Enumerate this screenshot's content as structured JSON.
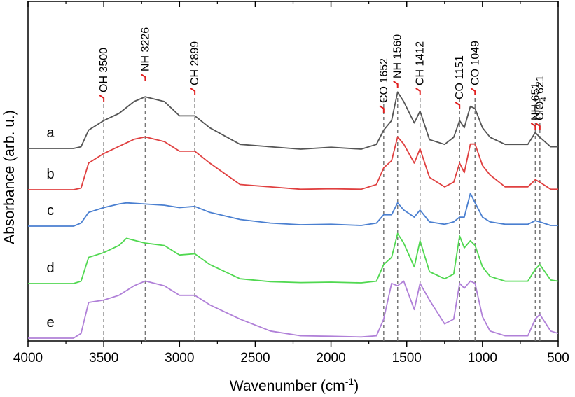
{
  "chart_data": {
    "type": "line",
    "xlabel": "Wavenumber (cm",
    "xlabel_sup": "-1",
    "xlabel_tail": ")",
    "ylabel": "Absorbance (arb. u.)",
    "xlim": [
      4000,
      500
    ],
    "ylim": [
      0,
      1
    ],
    "x_ticks": [
      {
        "value": 4000,
        "label": "4000"
      },
      {
        "value": 3500,
        "label": "3500"
      },
      {
        "value": 3000,
        "label": "3000"
      },
      {
        "value": 2500,
        "label": "2500"
      },
      {
        "value": 2000,
        "label": "2000"
      },
      {
        "value": 1500,
        "label": "1500"
      },
      {
        "value": 1000,
        "label": "1000"
      },
      {
        "value": 500,
        "label": "500"
      }
    ],
    "series": [
      {
        "name": "a",
        "color": "#555555",
        "points": [
          [
            4000,
            0.163
          ],
          [
            3700,
            0.163
          ],
          [
            3650,
            0.17
          ],
          [
            3600,
            0.24
          ],
          [
            3500,
            0.28
          ],
          [
            3400,
            0.31
          ],
          [
            3300,
            0.36
          ],
          [
            3226,
            0.38
          ],
          [
            3100,
            0.36
          ],
          [
            3000,
            0.3
          ],
          [
            2899,
            0.3
          ],
          [
            2800,
            0.25
          ],
          [
            2600,
            0.18
          ],
          [
            2400,
            0.17
          ],
          [
            2200,
            0.16
          ],
          [
            2000,
            0.168
          ],
          [
            1800,
            0.16
          ],
          [
            1700,
            0.18
          ],
          [
            1652,
            0.24
          ],
          [
            1600,
            0.28
          ],
          [
            1560,
            0.4
          ],
          [
            1520,
            0.36
          ],
          [
            1450,
            0.27
          ],
          [
            1412,
            0.32
          ],
          [
            1350,
            0.2
          ],
          [
            1250,
            0.18
          ],
          [
            1190,
            0.21
          ],
          [
            1151,
            0.28
          ],
          [
            1120,
            0.25
          ],
          [
            1080,
            0.34
          ],
          [
            1049,
            0.33
          ],
          [
            1000,
            0.25
          ],
          [
            950,
            0.21
          ],
          [
            850,
            0.18
          ],
          [
            700,
            0.18
          ],
          [
            651,
            0.23
          ],
          [
            621,
            0.21
          ],
          [
            550,
            0.17
          ],
          [
            500,
            0.17
          ]
        ]
      },
      {
        "name": "b",
        "color": "#e04040",
        "points": [
          [
            4000,
            0.108
          ],
          [
            3700,
            0.108
          ],
          [
            3650,
            0.115
          ],
          [
            3600,
            0.22
          ],
          [
            3500,
            0.26
          ],
          [
            3400,
            0.29
          ],
          [
            3300,
            0.32
          ],
          [
            3226,
            0.33
          ],
          [
            3100,
            0.31
          ],
          [
            3000,
            0.27
          ],
          [
            2899,
            0.27
          ],
          [
            2800,
            0.22
          ],
          [
            2600,
            0.13
          ],
          [
            2400,
            0.12
          ],
          [
            2200,
            0.11
          ],
          [
            2000,
            0.112
          ],
          [
            1800,
            0.11
          ],
          [
            1700,
            0.13
          ],
          [
            1652,
            0.2
          ],
          [
            1600,
            0.23
          ],
          [
            1560,
            0.33
          ],
          [
            1520,
            0.3
          ],
          [
            1450,
            0.22
          ],
          [
            1412,
            0.28
          ],
          [
            1350,
            0.16
          ],
          [
            1250,
            0.12
          ],
          [
            1190,
            0.14
          ],
          [
            1151,
            0.22
          ],
          [
            1120,
            0.18
          ],
          [
            1080,
            0.3
          ],
          [
            1049,
            0.3
          ],
          [
            1000,
            0.21
          ],
          [
            950,
            0.17
          ],
          [
            850,
            0.12
          ],
          [
            700,
            0.12
          ],
          [
            651,
            0.15
          ],
          [
            621,
            0.14
          ],
          [
            550,
            0.11
          ],
          [
            500,
            0.11
          ]
        ]
      },
      {
        "name": "c",
        "color": "#4a7fd0",
        "points": [
          [
            4000,
            0.082
          ],
          [
            3700,
            0.082
          ],
          [
            3650,
            0.095
          ],
          [
            3600,
            0.14
          ],
          [
            3500,
            0.16
          ],
          [
            3400,
            0.175
          ],
          [
            3350,
            0.18
          ],
          [
            3226,
            0.175
          ],
          [
            3100,
            0.17
          ],
          [
            3000,
            0.16
          ],
          [
            2899,
            0.165
          ],
          [
            2800,
            0.14
          ],
          [
            2600,
            0.11
          ],
          [
            2400,
            0.095
          ],
          [
            2200,
            0.088
          ],
          [
            2000,
            0.09
          ],
          [
            1800,
            0.085
          ],
          [
            1700,
            0.095
          ],
          [
            1652,
            0.13
          ],
          [
            1600,
            0.13
          ],
          [
            1560,
            0.18
          ],
          [
            1520,
            0.15
          ],
          [
            1450,
            0.12
          ],
          [
            1412,
            0.15
          ],
          [
            1350,
            0.1
          ],
          [
            1250,
            0.09
          ],
          [
            1190,
            0.1
          ],
          [
            1151,
            0.12
          ],
          [
            1120,
            0.12
          ],
          [
            1080,
            0.22
          ],
          [
            1049,
            0.18
          ],
          [
            1000,
            0.12
          ],
          [
            950,
            0.1
          ],
          [
            850,
            0.09
          ],
          [
            700,
            0.09
          ],
          [
            651,
            0.105
          ],
          [
            621,
            0.1
          ],
          [
            550,
            0.085
          ],
          [
            500,
            0.085
          ]
        ]
      },
      {
        "name": "d",
        "color": "#50d850",
        "points": [
          [
            4000,
            0.04
          ],
          [
            3700,
            0.04
          ],
          [
            3650,
            0.05
          ],
          [
            3600,
            0.15
          ],
          [
            3500,
            0.17
          ],
          [
            3400,
            0.2
          ],
          [
            3350,
            0.23
          ],
          [
            3226,
            0.21
          ],
          [
            3100,
            0.2
          ],
          [
            3000,
            0.16
          ],
          [
            2899,
            0.165
          ],
          [
            2800,
            0.12
          ],
          [
            2600,
            0.06
          ],
          [
            2400,
            0.048
          ],
          [
            2200,
            0.044
          ],
          [
            2000,
            0.046
          ],
          [
            1800,
            0.043
          ],
          [
            1700,
            0.05
          ],
          [
            1652,
            0.12
          ],
          [
            1600,
            0.15
          ],
          [
            1560,
            0.25
          ],
          [
            1520,
            0.21
          ],
          [
            1450,
            0.11
          ],
          [
            1412,
            0.22
          ],
          [
            1350,
            0.09
          ],
          [
            1250,
            0.06
          ],
          [
            1190,
            0.08
          ],
          [
            1151,
            0.24
          ],
          [
            1120,
            0.19
          ],
          [
            1080,
            0.22
          ],
          [
            1049,
            0.2
          ],
          [
            1000,
            0.11
          ],
          [
            950,
            0.07
          ],
          [
            850,
            0.05
          ],
          [
            700,
            0.05
          ],
          [
            651,
            0.1
          ],
          [
            621,
            0.12
          ],
          [
            550,
            0.055
          ],
          [
            500,
            0.05
          ]
        ]
      },
      {
        "name": "e",
        "color": "#b080d8",
        "points": [
          [
            4000,
            0.0
          ],
          [
            3700,
            0.0
          ],
          [
            3650,
            0.02
          ],
          [
            3600,
            0.15
          ],
          [
            3500,
            0.16
          ],
          [
            3400,
            0.18
          ],
          [
            3300,
            0.22
          ],
          [
            3226,
            0.24
          ],
          [
            3100,
            0.22
          ],
          [
            3000,
            0.18
          ],
          [
            2899,
            0.18
          ],
          [
            2800,
            0.14
          ],
          [
            2600,
            0.08
          ],
          [
            2400,
            0.03
          ],
          [
            2200,
            0.01
          ],
          [
            2000,
            0.008
          ],
          [
            1800,
            0.005
          ],
          [
            1700,
            0.01
          ],
          [
            1652,
            0.08
          ],
          [
            1600,
            0.23
          ],
          [
            1560,
            0.22
          ],
          [
            1520,
            0.24
          ],
          [
            1450,
            0.12
          ],
          [
            1412,
            0.23
          ],
          [
            1350,
            0.16
          ],
          [
            1250,
            0.06
          ],
          [
            1190,
            0.08
          ],
          [
            1151,
            0.23
          ],
          [
            1120,
            0.21
          ],
          [
            1080,
            0.24
          ],
          [
            1049,
            0.23
          ],
          [
            1000,
            0.09
          ],
          [
            950,
            0.03
          ],
          [
            850,
            0.01
          ],
          [
            700,
            0.01
          ],
          [
            651,
            0.08
          ],
          [
            621,
            0.1
          ],
          [
            550,
            0.03
          ],
          [
            500,
            0.02
          ]
        ]
      }
    ],
    "peaks": [
      {
        "id": "oh-3500",
        "group": "OH",
        "value": "3500",
        "x": 3500
      },
      {
        "id": "nh-3226",
        "group": "NH",
        "value": "3226",
        "x": 3226
      },
      {
        "id": "ch-2899",
        "group": "CH",
        "value": "2899",
        "x": 2899
      },
      {
        "id": "co-1652",
        "group": "CO",
        "value": "1652",
        "x": 1652
      },
      {
        "id": "nh-1560",
        "group": "NH",
        "value": "1560",
        "x": 1560
      },
      {
        "id": "ch-1412",
        "group": "CH",
        "value": "1412",
        "x": 1412
      },
      {
        "id": "co-1151",
        "group": "CO",
        "value": "1151",
        "x": 1151
      },
      {
        "id": "co-1049",
        "group": "CO",
        "value": "1049",
        "x": 1049
      },
      {
        "id": "nh-651",
        "group": "NH",
        "value": "651",
        "x": 651
      },
      {
        "id": "clo4-621",
        "group": "ClO",
        "group_sub": "4",
        "value": "621",
        "x": 621
      }
    ],
    "peak_marker_color": "#e02020",
    "dash_color": "#777777",
    "axis_color": "#000000"
  }
}
